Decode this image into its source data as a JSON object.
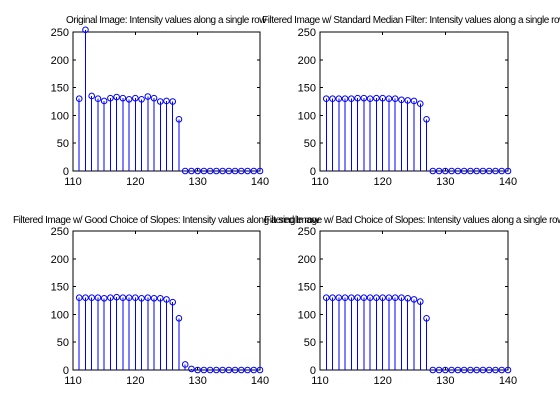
{
  "figure": {
    "background": "#ffffff",
    "axes_color": "#000000",
    "stem_color": "#0000ff"
  },
  "chart_data": [
    {
      "type": "stem",
      "title": "Original Image: Intensity values along a single row",
      "xlim": [
        110,
        140
      ],
      "ylim": [
        0,
        250
      ],
      "xticks": [
        110,
        120,
        130,
        140
      ],
      "yticks": [
        0,
        50,
        100,
        150,
        200,
        250
      ],
      "grid": false,
      "x": [
        111,
        112,
        113,
        114,
        115,
        116,
        117,
        118,
        119,
        120,
        121,
        122,
        123,
        124,
        125,
        126,
        127,
        128,
        129,
        130,
        131,
        132,
        133,
        134,
        135,
        136,
        137,
        138,
        139,
        140
      ],
      "values": [
        130,
        254,
        135,
        130,
        126,
        131,
        133,
        131,
        129,
        131,
        129,
        134,
        131,
        125,
        126,
        125,
        93,
        0,
        0,
        0,
        0,
        0,
        0,
        0,
        0,
        0,
        0,
        0,
        0,
        0
      ]
    },
    {
      "type": "stem",
      "title": "Filtered Image w/ Standard Median Filter: Intensity values along a single row",
      "xlim": [
        110,
        140
      ],
      "ylim": [
        0,
        250
      ],
      "xticks": [
        110,
        120,
        130,
        140
      ],
      "yticks": [
        0,
        50,
        100,
        150,
        200,
        250
      ],
      "grid": false,
      "x": [
        111,
        112,
        113,
        114,
        115,
        116,
        117,
        118,
        119,
        120,
        121,
        122,
        123,
        124,
        125,
        126,
        127,
        128,
        129,
        130,
        131,
        132,
        133,
        134,
        135,
        136,
        137,
        138,
        139,
        140
      ],
      "values": [
        130,
        130,
        130,
        130,
        130,
        131,
        131,
        130,
        131,
        131,
        130,
        130,
        128,
        127,
        126,
        121,
        93,
        0,
        0,
        0,
        0,
        0,
        0,
        0,
        0,
        0,
        0,
        0,
        0,
        0
      ]
    },
    {
      "type": "stem",
      "title": "Filtered Image w/ Good Choice of Slopes: Intensity values along a single row",
      "xlim": [
        110,
        140
      ],
      "ylim": [
        0,
        250
      ],
      "xticks": [
        110,
        120,
        130,
        140
      ],
      "yticks": [
        0,
        50,
        100,
        150,
        200,
        250
      ],
      "grid": false,
      "x": [
        111,
        112,
        113,
        114,
        115,
        116,
        117,
        118,
        119,
        120,
        121,
        122,
        123,
        124,
        125,
        126,
        127,
        128,
        129,
        130,
        131,
        132,
        133,
        134,
        135,
        136,
        137,
        138,
        139,
        140
      ],
      "values": [
        130,
        130,
        130,
        130,
        129,
        130,
        131,
        130,
        130,
        130,
        129,
        130,
        129,
        129,
        127,
        122,
        93,
        10,
        2,
        0,
        0,
        0,
        0,
        0,
        0,
        0,
        0,
        0,
        0,
        0
      ]
    },
    {
      "type": "stem",
      "title": "Filtered Image w/ Bad Choice of Slopes: Intensity values along a single row",
      "xlim": [
        110,
        140
      ],
      "ylim": [
        0,
        250
      ],
      "xticks": [
        110,
        120,
        130,
        140
      ],
      "yticks": [
        0,
        50,
        100,
        150,
        200,
        250
      ],
      "grid": false,
      "x": [
        111,
        112,
        113,
        114,
        115,
        116,
        117,
        118,
        119,
        120,
        121,
        122,
        123,
        124,
        125,
        126,
        127,
        128,
        129,
        130,
        131,
        132,
        133,
        134,
        135,
        136,
        137,
        138,
        139,
        140
      ],
      "values": [
        130,
        130,
        130,
        130,
        130,
        130,
        130,
        130,
        130,
        130,
        130,
        130,
        130,
        129,
        127,
        123,
        93,
        0,
        0,
        0,
        0,
        0,
        0,
        0,
        0,
        0,
        0,
        0,
        0,
        0
      ]
    }
  ]
}
